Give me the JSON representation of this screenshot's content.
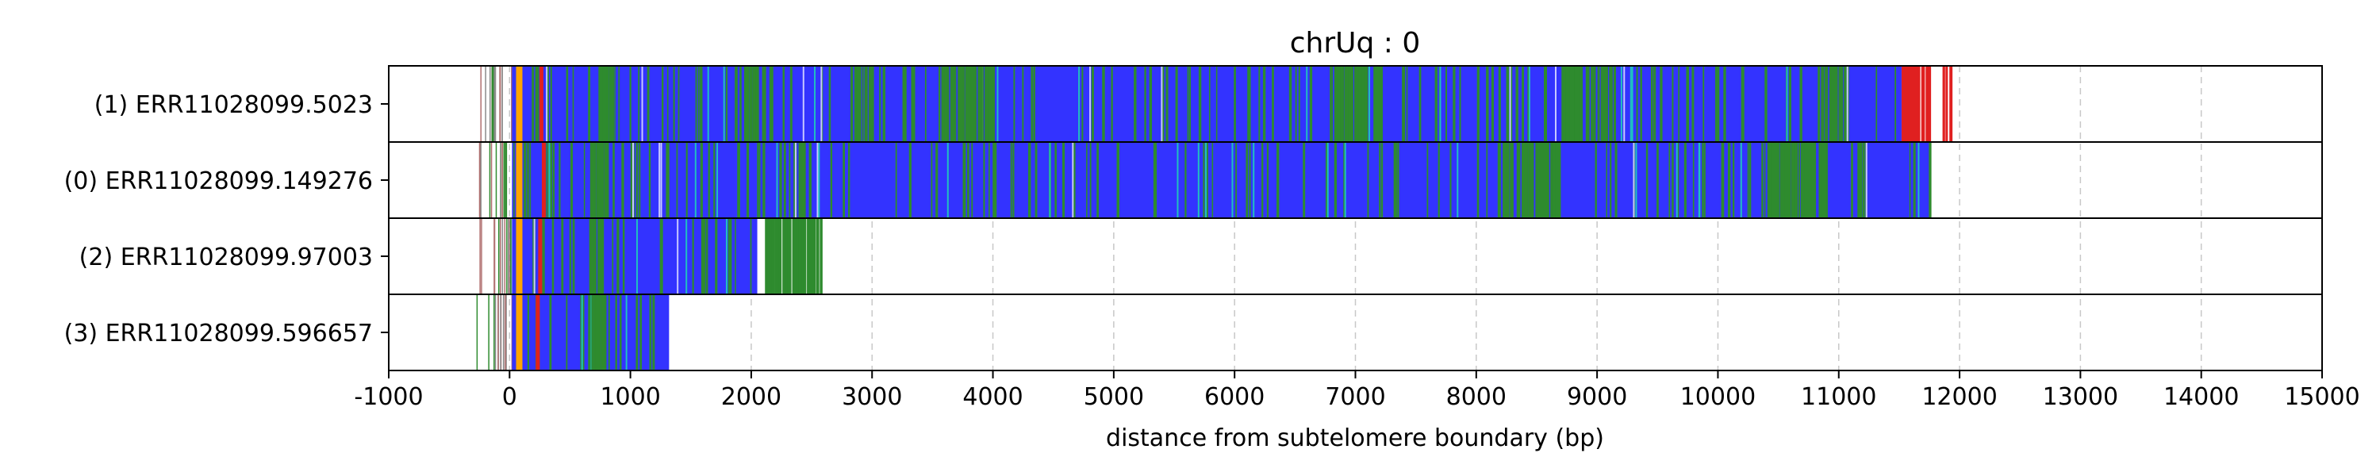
{
  "chart_data": {
    "type": "heatmap",
    "title": "chrUq : 0",
    "xlabel": "distance from subtelomere boundary (bp)",
    "xlim": [
      -1000,
      15000
    ],
    "xticks": [
      -1000,
      0,
      1000,
      2000,
      3000,
      4000,
      5000,
      6000,
      7000,
      8000,
      9000,
      10000,
      11000,
      12000,
      13000,
      14000,
      15000
    ],
    "grid": "vertical dashed gridlines at x ticks",
    "colors": {
      "repeat_main": "#3333ff",
      "variant_green": "#2e8b2e",
      "variant_red": "#e02020",
      "variant_orange": "#ffa500",
      "variant_cyan": "#20c0c0",
      "sparse_line": "#8a8a8a",
      "frame": "#000000",
      "grid": "#c8c8c8"
    },
    "reads": [
      {
        "label": "(1) ERR11028099.5023",
        "start": -250,
        "end": 11930,
        "blue_span": [
          20,
          11520
        ],
        "red_span": [
          11520,
          11930
        ],
        "green_clusters": [
          [
            720,
            860
          ],
          [
            1950,
            2050
          ],
          [
            2850,
            3000
          ],
          [
            3550,
            4050
          ],
          [
            6800,
            7200
          ],
          [
            8700,
            9100
          ],
          [
            10850,
            11020
          ]
        ],
        "orange_marks": [
          80
        ],
        "red_marks": [
          260
        ]
      },
      {
        "label": "(0) ERR11028099.149276",
        "start": -300,
        "end": 11760,
        "blue_span": [
          20,
          11760
        ],
        "red_span": null,
        "green_clusters": [
          [
            650,
            800
          ],
          [
            8200,
            8700
          ],
          [
            10400,
            10900
          ]
        ],
        "orange_marks": [
          80
        ],
        "red_marks": [
          280
        ]
      },
      {
        "label": "(2) ERR11028099.97003",
        "start": -250,
        "end": 2780,
        "blue_span": [
          20,
          2050
        ],
        "red_span": null,
        "green_clusters": [
          [
            650,
            820
          ],
          [
            2100,
            2600
          ]
        ],
        "orange_marks": [
          80
        ],
        "red_marks": [
          250
        ]
      },
      {
        "label": "(3) ERR11028099.596657",
        "start": -300,
        "end": 1320,
        "blue_span": [
          20,
          1320
        ],
        "red_span": null,
        "green_clusters": [
          [
            650,
            800
          ]
        ],
        "orange_marks": [
          80
        ],
        "red_marks": [
          230
        ]
      }
    ]
  }
}
